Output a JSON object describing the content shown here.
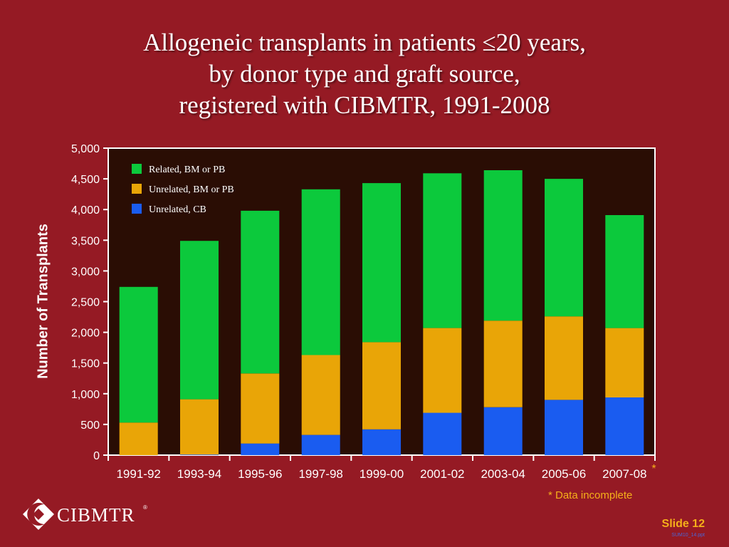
{
  "slide": {
    "title_lines": [
      "Allogeneic transplants in patients ≤20 years,",
      "by donor type and graft source,",
      "registered with CIBMTR, 1991-2008"
    ],
    "footnote": "* Data incomplete",
    "slide_number": "Slide 12",
    "file_ref": "SUM10_14.ppt",
    "logo_text": "CIBMTR",
    "logo_mark": "®"
  },
  "colors": {
    "background": "#951a24",
    "plot_background": "#2a0d04",
    "related": "#0cc93c",
    "unrelated_bm_pb": "#e9a507",
    "unrelated_cb": "#1a5cf0",
    "accent": "#f5b01a"
  },
  "chart_data": {
    "type": "bar",
    "stacked": true,
    "categories": [
      "1991-92",
      "1993-94",
      "1995-96",
      "1997-98",
      "1999-00",
      "2001-02",
      "2003-04",
      "2005-06",
      "2007-08"
    ],
    "category_marks": [
      "",
      "",
      "",
      "",
      "",
      "",
      "",
      "",
      "*"
    ],
    "series": [
      {
        "name": "Unrelated, CB",
        "color": "#1a5cf0",
        "values": [
          0,
          10,
          190,
          330,
          420,
          690,
          780,
          900,
          940
        ]
      },
      {
        "name": "Unrelated, BM or PB",
        "color": "#e9a507",
        "values": [
          530,
          900,
          1140,
          1300,
          1420,
          1380,
          1410,
          1360,
          1130
        ]
      },
      {
        "name": "Related, BM or PB",
        "color": "#0cc93c",
        "values": [
          2210,
          2580,
          2650,
          2700,
          2590,
          2520,
          2450,
          2240,
          1840
        ]
      }
    ],
    "legend_order": [
      "Related, BM or PB",
      "Unrelated, BM or PB",
      "Unrelated, CB"
    ],
    "legend_position": "top-left",
    "ylabel": "Number of Transplants",
    "xlabel": "",
    "ylim": [
      0,
      5000
    ],
    "yticks": [
      0,
      500,
      1000,
      1500,
      2000,
      2500,
      3000,
      3500,
      4000,
      4500,
      5000
    ],
    "ytick_labels": [
      "0",
      "500",
      "1,000",
      "1,500",
      "2,000",
      "2,500",
      "3,000",
      "3,500",
      "4,000",
      "4,500",
      "5,000"
    ],
    "grid": false
  }
}
